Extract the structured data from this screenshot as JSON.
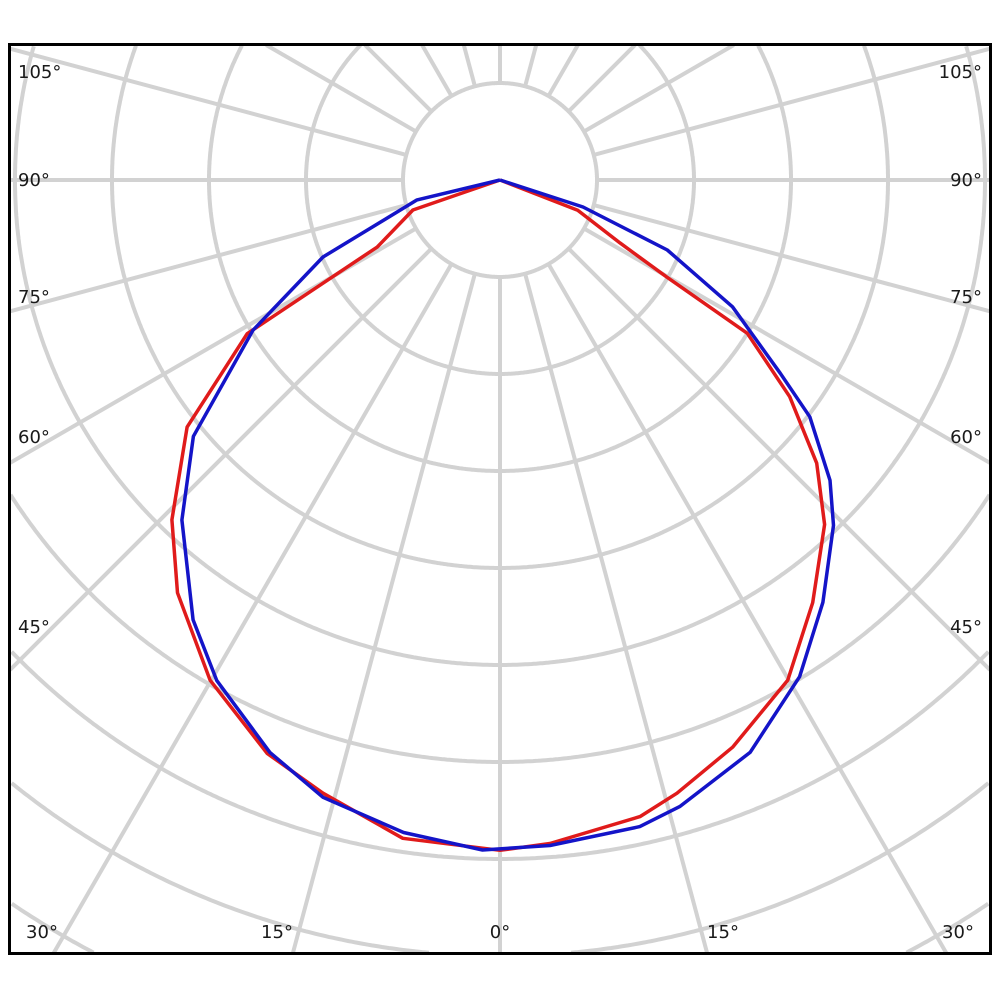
{
  "chart_data": {
    "type": "polar-line",
    "title": "",
    "angle_unit": "degrees",
    "radial_unit": "grid rings (no radial labels printed)",
    "grid": true,
    "grid_ring_count": 9,
    "radial_line_step_deg": 15,
    "angle_labels": {
      "left": [
        "105°",
        "90°",
        "75°",
        "60°",
        "45°"
      ],
      "right": [
        "105°",
        "90°",
        "75°",
        "60°",
        "45°"
      ],
      "bottom": [
        "30°",
        "15°",
        "0°",
        "15°",
        "30°"
      ]
    },
    "colors": {
      "grid": "#d2d2d2",
      "frame": "#000000",
      "series_red": "#e01b1b",
      "series_blue": "#1414c8"
    },
    "series": [
      {
        "color": "#e01b1b",
        "points": [
          [
            -90,
            0
          ],
          [
            -71,
            0.95
          ],
          [
            -61.4,
            1.44
          ],
          [
            -58.7,
            3.05
          ],
          [
            -51.7,
            4.11
          ],
          [
            -44,
            4.87
          ],
          [
            -38,
            5.4
          ],
          [
            -30.1,
            5.96
          ],
          [
            -22.1,
            6.38
          ],
          [
            -16.1,
            6.58
          ],
          [
            -8.4,
            6.86
          ],
          [
            0,
            6.91
          ],
          [
            4.3,
            6.86
          ],
          [
            12.4,
            6.72
          ],
          [
            16.1,
            6.58
          ],
          [
            22.3,
            6.32
          ],
          [
            29.9,
            5.95
          ],
          [
            36.5,
            5.42
          ],
          [
            43.3,
            4.88
          ],
          [
            48.2,
            4.38
          ],
          [
            53.2,
            3.73
          ],
          [
            58.2,
            3.0
          ],
          [
            59.8,
            1.99
          ],
          [
            62.3,
            1.4
          ],
          [
            68.7,
            0.86
          ],
          [
            90,
            0
          ]
        ]
      },
      {
        "color": "#1414c8",
        "points": [
          [
            -90,
            0
          ],
          [
            -76.5,
            0.88
          ],
          [
            -66.5,
            1.99
          ],
          [
            -58.7,
            2.98
          ],
          [
            -50.1,
            4.12
          ],
          [
            -43.1,
            4.8
          ],
          [
            -34.9,
            5.53
          ],
          [
            -29.5,
            5.93
          ],
          [
            -21.9,
            6.36
          ],
          [
            -16,
            6.62
          ],
          [
            -8.4,
            6.8
          ],
          [
            -1.5,
            6.91
          ],
          [
            4.3,
            6.88
          ],
          [
            12.2,
            6.82
          ],
          [
            16,
            6.72
          ],
          [
            23.6,
            6.44
          ],
          [
            31.1,
            5.98
          ],
          [
            37.4,
            5.48
          ],
          [
            44,
            4.95
          ],
          [
            47.7,
            4.6
          ],
          [
            52.6,
            4.02
          ],
          [
            55.4,
            3.51
          ],
          [
            61.4,
            2.73
          ],
          [
            67.3,
            1.87
          ],
          [
            72,
            0.9
          ],
          [
            90,
            0
          ]
        ]
      }
    ]
  }
}
